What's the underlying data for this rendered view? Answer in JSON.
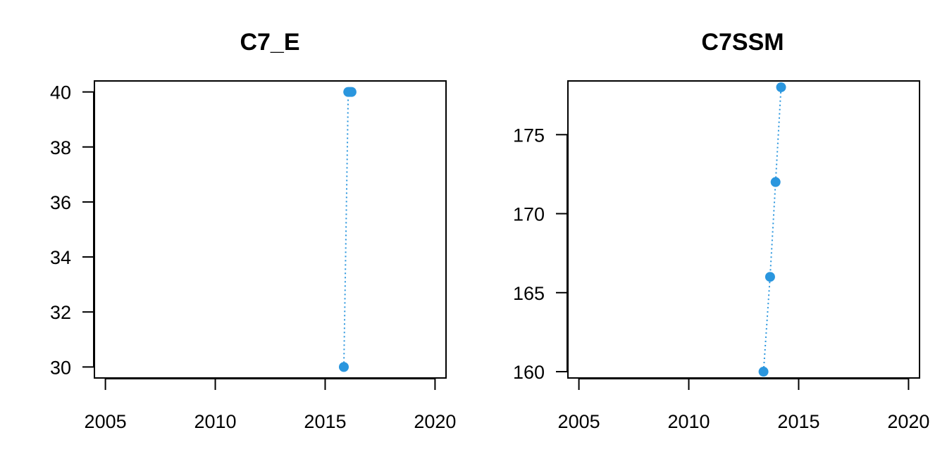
{
  "chart_data": [
    {
      "type": "line",
      "title": "C7_E",
      "xlabel": "",
      "ylabel": "",
      "xlim": [
        2004.5,
        2020.5
      ],
      "ylim": [
        29.6,
        40.4
      ],
      "xticks": [
        2005,
        2010,
        2015,
        2020
      ],
      "yticks": [
        30,
        32,
        34,
        36,
        38,
        40
      ],
      "line_style": "dotted",
      "color": "#2a96de",
      "grid": false,
      "series": [
        {
          "x": [
            2015.85,
            2016.05,
            2016.12,
            2016.2
          ],
          "y": [
            30,
            40,
            40,
            40
          ]
        }
      ]
    },
    {
      "type": "line",
      "title": "C7SSM",
      "xlabel": "",
      "ylabel": "",
      "xlim": [
        2004.5,
        2020.5
      ],
      "ylim": [
        159.6,
        178.4
      ],
      "xticks": [
        2005,
        2010,
        2015,
        2020
      ],
      "yticks": [
        160,
        165,
        170,
        175
      ],
      "line_style": "dotted",
      "color": "#2a96de",
      "grid": false,
      "series": [
        {
          "x": [
            2013.4,
            2013.7,
            2013.95,
            2014.2
          ],
          "y": [
            160,
            166,
            172,
            178
          ]
        }
      ]
    }
  ]
}
